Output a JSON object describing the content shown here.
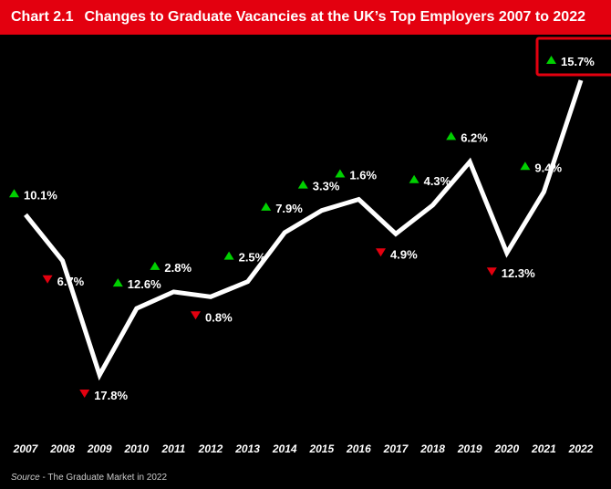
{
  "header": {
    "chart_number": "Chart 2.1",
    "title": "Changes to Graduate Vacancies at the UK’s Top Employers 2007 to 2022"
  },
  "source": {
    "key": "Source",
    "text": " - The Graduate Market in 2022"
  },
  "colors": {
    "header_bg": "#e3000f",
    "background": "#000000",
    "line": "#ffffff",
    "up": "#00d000",
    "down": "#e3000f",
    "highlight_box": "#e3000f"
  },
  "chart_data": {
    "type": "line",
    "title": "Changes to Graduate Vacancies at the UK’s Top Employers 2007 to 2022",
    "xlabel": "",
    "ylabel": "",
    "grid": false,
    "categories": [
      "2007",
      "2008",
      "2009",
      "2010",
      "2011",
      "2012",
      "2013",
      "2014",
      "2015",
      "2016",
      "2017",
      "2018",
      "2019",
      "2020",
      "2021",
      "2022"
    ],
    "changes": [
      10.1,
      -6.7,
      -17.8,
      12.6,
      2.8,
      -0.8,
      2.5,
      7.9,
      3.3,
      1.6,
      -4.9,
      4.3,
      6.2,
      -12.3,
      9.4,
      15.7
    ],
    "labels": [
      "10.1%",
      "6.7%",
      "17.8%",
      "12.6%",
      "2.8%",
      "0.8%",
      "2.5%",
      "7.9%",
      "3.3%",
      "1.6%",
      "4.9%",
      "4.3%",
      "6.2%",
      "12.3%",
      "9.4%",
      "15.7%"
    ],
    "direction": [
      "up",
      "down",
      "down",
      "up",
      "up",
      "down",
      "up",
      "up",
      "up",
      "up",
      "down",
      "up",
      "up",
      "down",
      "up",
      "up"
    ],
    "highlight": "2022"
  }
}
